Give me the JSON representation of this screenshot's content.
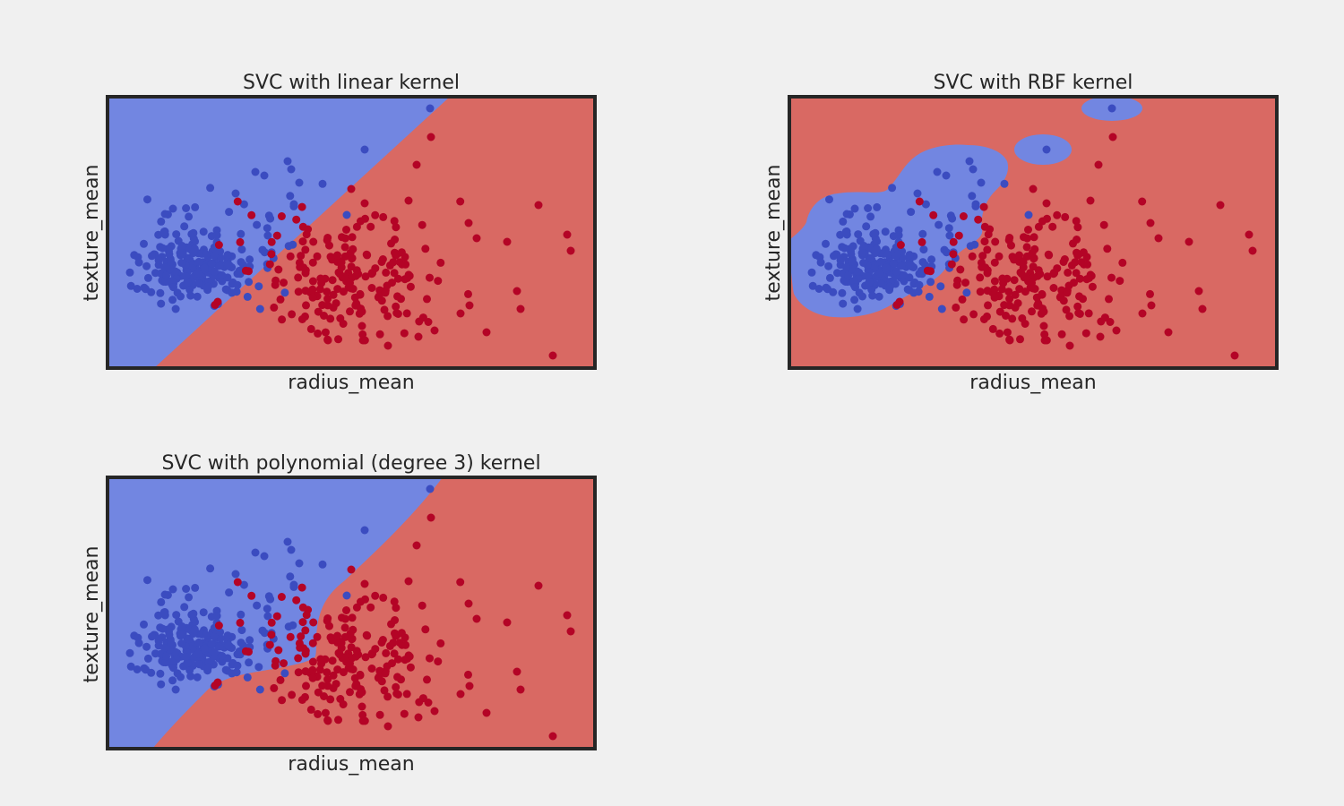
{
  "colors": {
    "figure_background": "#f0f0f0",
    "class_0_region": "#7286e1",
    "class_1_region": "#d96963",
    "class_0_points": "#3b4cc0",
    "class_1_points": "#b40426",
    "frame": "#262626",
    "text": "#262626"
  },
  "chart_data": [
    {
      "type": "scatter",
      "title": "SVC with linear kernel",
      "xlabel": "radius_mean",
      "ylabel": "texture_mean",
      "kernel": "linear",
      "ticks_visible": false,
      "grid": false,
      "legend": "none",
      "classes": [
        "0",
        "1"
      ]
    },
    {
      "type": "scatter",
      "title": "SVC with RBF kernel",
      "xlabel": "radius_mean",
      "ylabel": "texture_mean",
      "kernel": "rbf",
      "ticks_visible": false,
      "grid": false,
      "legend": "none",
      "classes": [
        "0",
        "1"
      ]
    },
    {
      "type": "scatter",
      "title": "SVC with polynomial (degree 3) kernel",
      "xlabel": "radius_mean",
      "ylabel": "texture_mean",
      "kernel": "poly",
      "ticks_visible": false,
      "grid": false,
      "legend": "none",
      "classes": [
        "0",
        "1"
      ]
    }
  ]
}
